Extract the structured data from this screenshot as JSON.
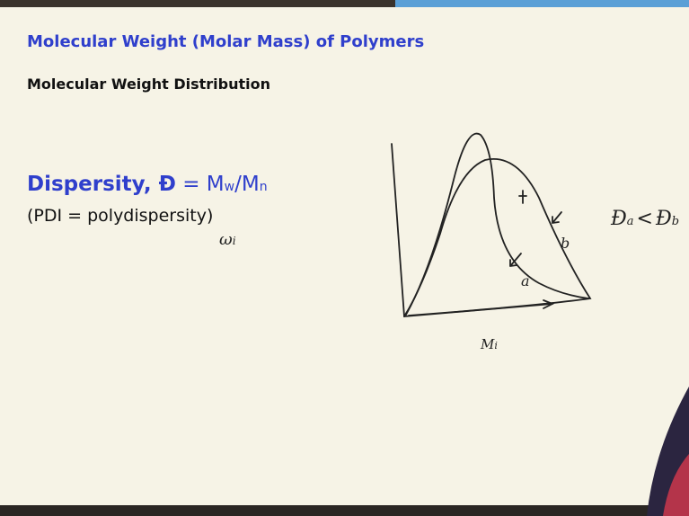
{
  "slide": {
    "title": "Molecular Weight (Molar Mass) of Polymers",
    "subtitle": "Molecular Weight Distribution",
    "formula": {
      "lhs": "Dispersity, Đ",
      "equals": "=",
      "m1": "M",
      "sub1": "w",
      "slash": "/",
      "m2": "M",
      "sub2": "n"
    },
    "note": "(PDI = polydispersity)",
    "handwriting": {
      "y_axis": "ω",
      "y_axis_sub": "i",
      "x_axis": "M",
      "x_axis_sub": "i",
      "curve_a": "a",
      "curve_b": "b",
      "comparison": {
        "left": "Đ",
        "left_sub": "a",
        "op": "<",
        "right": "Đ",
        "right_sub": "b"
      }
    }
  }
}
